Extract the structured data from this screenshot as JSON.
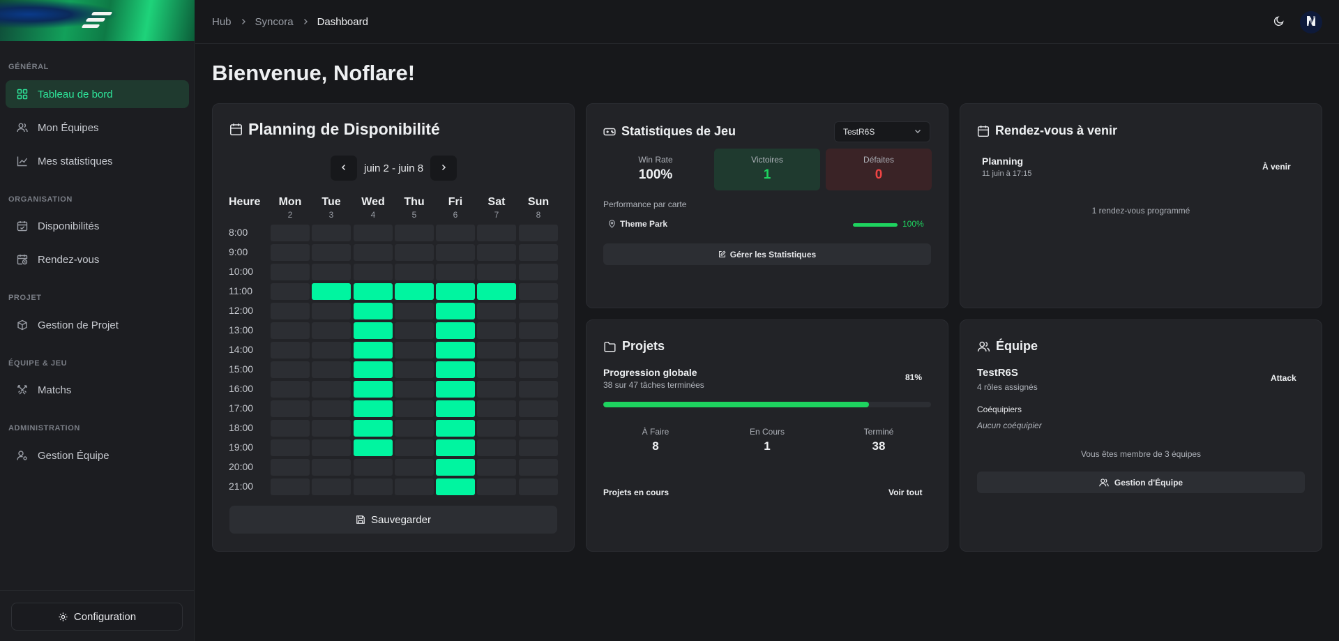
{
  "colors": {
    "accent": "#2ee59a",
    "available": "#00f5a0",
    "win": "#1ed35f",
    "loss": "#ef4444"
  },
  "sidebar": {
    "sections": [
      {
        "title": "GÉNÉRAL",
        "items": [
          {
            "label": "Tableau de bord",
            "icon": "grid-icon",
            "active": true
          },
          {
            "label": "Mon Équipes",
            "icon": "users-icon"
          },
          {
            "label": "Mes statistiques",
            "icon": "chart-line-icon"
          }
        ]
      },
      {
        "title": "ORGANISATION",
        "items": [
          {
            "label": "Disponibilités",
            "icon": "calendar-check-icon"
          },
          {
            "label": "Rendez-vous",
            "icon": "calendar-clock-icon"
          }
        ]
      },
      {
        "title": "PROJET",
        "items": [
          {
            "label": "Gestion de Projet",
            "icon": "box-icon"
          }
        ]
      },
      {
        "title": "ÉQUIPE & JEU",
        "items": [
          {
            "label": "Matchs",
            "icon": "swords-icon"
          }
        ]
      },
      {
        "title": "ADMINISTRATION",
        "items": [
          {
            "label": "Gestion Équipe",
            "icon": "user-cog-icon"
          }
        ]
      }
    ],
    "config_label": "Configuration"
  },
  "header": {
    "breadcrumb": [
      "Hub",
      "Syncora",
      "Dashboard"
    ]
  },
  "welcome": "Bienvenue, Noflare!",
  "planning": {
    "title": "Planning de Disponibilité",
    "week_label": "juin 2 - juin 8",
    "hour_header": "Heure",
    "days": [
      {
        "name": "Mon",
        "num": "2"
      },
      {
        "name": "Tue",
        "num": "3"
      },
      {
        "name": "Wed",
        "num": "4"
      },
      {
        "name": "Thu",
        "num": "5"
      },
      {
        "name": "Fri",
        "num": "6"
      },
      {
        "name": "Sat",
        "num": "7"
      },
      {
        "name": "Sun",
        "num": "8"
      }
    ],
    "hours": [
      "8:00",
      "9:00",
      "10:00",
      "11:00",
      "12:00",
      "13:00",
      "14:00",
      "15:00",
      "16:00",
      "17:00",
      "18:00",
      "19:00",
      "20:00",
      "21:00"
    ],
    "availability": [
      [
        0,
        0,
        0,
        0,
        0,
        0,
        0
      ],
      [
        0,
        0,
        0,
        0,
        0,
        0,
        0
      ],
      [
        0,
        0,
        0,
        0,
        0,
        0,
        0
      ],
      [
        0,
        1,
        1,
        1,
        1,
        1,
        0
      ],
      [
        0,
        0,
        1,
        0,
        1,
        0,
        0
      ],
      [
        0,
        0,
        1,
        0,
        1,
        0,
        0
      ],
      [
        0,
        0,
        1,
        0,
        1,
        0,
        0
      ],
      [
        0,
        0,
        1,
        0,
        1,
        0,
        0
      ],
      [
        0,
        0,
        1,
        0,
        1,
        0,
        0
      ],
      [
        0,
        0,
        1,
        0,
        1,
        0,
        0
      ],
      [
        0,
        0,
        1,
        0,
        1,
        0,
        0
      ],
      [
        0,
        0,
        1,
        0,
        1,
        0,
        0
      ],
      [
        0,
        0,
        0,
        0,
        1,
        0,
        0
      ],
      [
        0,
        0,
        0,
        0,
        1,
        0,
        0
      ]
    ],
    "save_label": "Sauvegarder"
  },
  "stats": {
    "title": "Statistiques de Jeu",
    "team_select": "TestR6S",
    "win_rate_label": "Win Rate",
    "win_rate": "100%",
    "victories_label": "Victoires",
    "victories": "1",
    "defeats_label": "Défaites",
    "defeats": "0",
    "perf_label": "Performance par carte",
    "maps": [
      {
        "name": "Theme Park",
        "value": 100,
        "display": "100%"
      }
    ],
    "manage_label": "Gérer les Statistiques"
  },
  "appointments": {
    "title": "Rendez-vous à venir",
    "items": [
      {
        "title": "Planning",
        "date": "11 juin à 17:15",
        "status": "À venir"
      }
    ],
    "count_text": "1 rendez-vous programmé"
  },
  "projects": {
    "title": "Projets",
    "progress_label": "Progression globale",
    "progress_sub": "38 sur 47 tâches terminées",
    "progress_pct": "81%",
    "progress_value": 81,
    "columns": [
      {
        "label": "À Faire",
        "value": "8"
      },
      {
        "label": "En Cours",
        "value": "1"
      },
      {
        "label": "Terminé",
        "value": "38"
      }
    ],
    "current_label": "Projets en cours",
    "view_all": "Voir tout"
  },
  "team": {
    "title": "Équipe",
    "name": "TestR6S",
    "roles": "4 rôles assignés",
    "role_badge": "Attack",
    "teammates_label": "Coéquipiers",
    "no_teammates": "Aucun coéquipier",
    "member_text": "Vous êtes membre de 3 équipes",
    "manage_label": "Gestion d'Équipe"
  }
}
